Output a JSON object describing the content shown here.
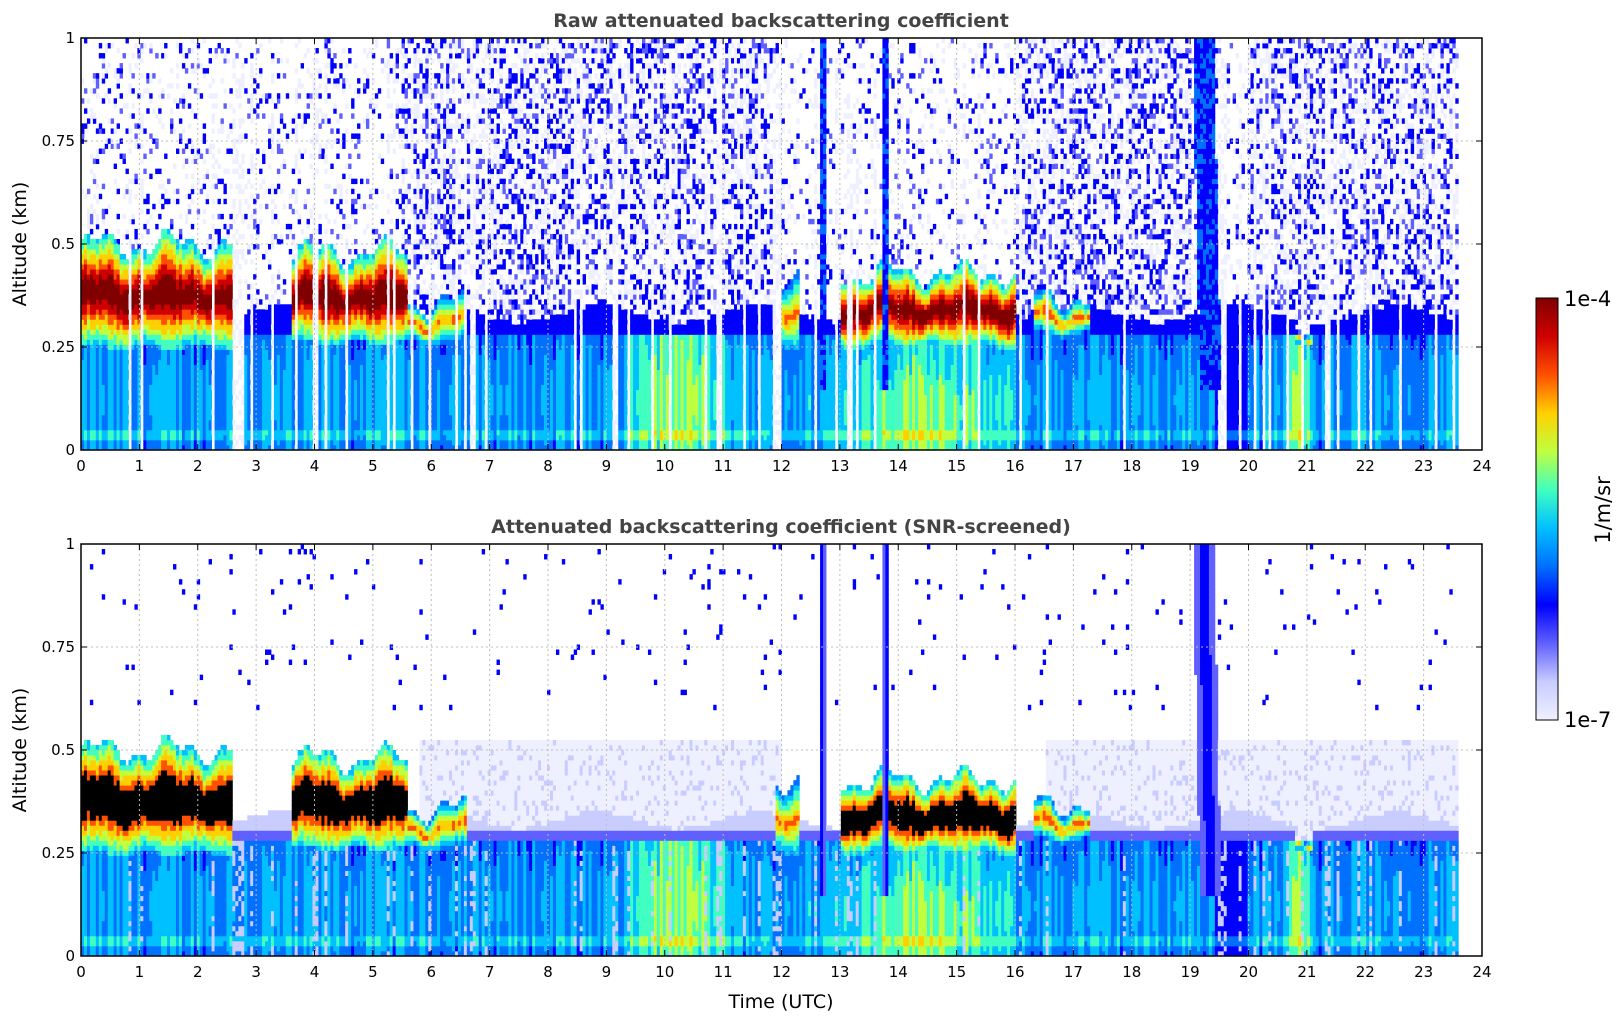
{
  "chart_data": [
    {
      "type": "heatmap",
      "title": "Raw attenuated backscattering coefficient",
      "xlabel": "",
      "ylabel": "Altitude (km)",
      "xlim": [
        0,
        24
      ],
      "ylim": [
        0,
        1
      ],
      "xticks": [
        "0",
        "1",
        "2",
        "3",
        "4",
        "5",
        "6",
        "7",
        "8",
        "9",
        "10",
        "11",
        "12",
        "13",
        "14",
        "15",
        "16",
        "17",
        "18",
        "19",
        "20",
        "21",
        "22",
        "23",
        "24"
      ],
      "yticks": [
        "0",
        "0.25",
        "0.5",
        "0.75",
        "1"
      ],
      "grid": true,
      "screened": false,
      "data_end_hour": 23.6,
      "aerosol_layers": [
        {
          "start": 0.0,
          "end": 2.6,
          "base_km": 0.25,
          "top_km": 0.52,
          "intensity": "high"
        },
        {
          "start": 3.6,
          "end": 5.6,
          "base_km": 0.26,
          "top_km": 0.5,
          "intensity": "high"
        },
        {
          "start": 5.6,
          "end": 6.6,
          "base_km": 0.26,
          "top_km": 0.38,
          "intensity": "medium"
        },
        {
          "start": 11.9,
          "end": 12.3,
          "base_km": 0.24,
          "top_km": 0.45,
          "intensity": "medium"
        },
        {
          "start": 13.0,
          "end": 16.0,
          "base_km": 0.25,
          "top_km": 0.45,
          "intensity": "high"
        },
        {
          "start": 16.3,
          "end": 17.3,
          "base_km": 0.28,
          "top_km": 0.39,
          "intensity": "medium"
        },
        {
          "start": 20.8,
          "end": 21.1,
          "base_km": 0.25,
          "top_km": 0.3,
          "intensity": "medium"
        }
      ],
      "vertical_plumes": [
        12.7,
        13.8,
        19.3
      ]
    },
    {
      "type": "heatmap",
      "title": "Attenuated backscattering coefficient (SNR-screened)",
      "xlabel": "Time (UTC)",
      "ylabel": "Altitude (km)",
      "xlim": [
        0,
        24
      ],
      "ylim": [
        0,
        1
      ],
      "xticks": [
        "0",
        "1",
        "2",
        "3",
        "4",
        "5",
        "6",
        "7",
        "8",
        "9",
        "10",
        "11",
        "12",
        "13",
        "14",
        "15",
        "16",
        "17",
        "18",
        "19",
        "20",
        "21",
        "22",
        "23",
        "24"
      ],
      "yticks": [
        "0",
        "0.25",
        "0.5",
        "0.75",
        "1"
      ],
      "grid": true,
      "screened": true,
      "data_end_hour": 23.6,
      "saturated_color": "#000000"
    }
  ],
  "colorbar": {
    "label": "1/m/sr",
    "max_label": "1e-4",
    "min_label": "1e-7",
    "colormap": [
      "#eef0ff",
      "#c8ccff",
      "#6060ff",
      "#0000ff",
      "#0070ff",
      "#00c0ff",
      "#40ffc0",
      "#c0ff40",
      "#ffd000",
      "#ff5000",
      "#d00000",
      "#800000"
    ]
  }
}
